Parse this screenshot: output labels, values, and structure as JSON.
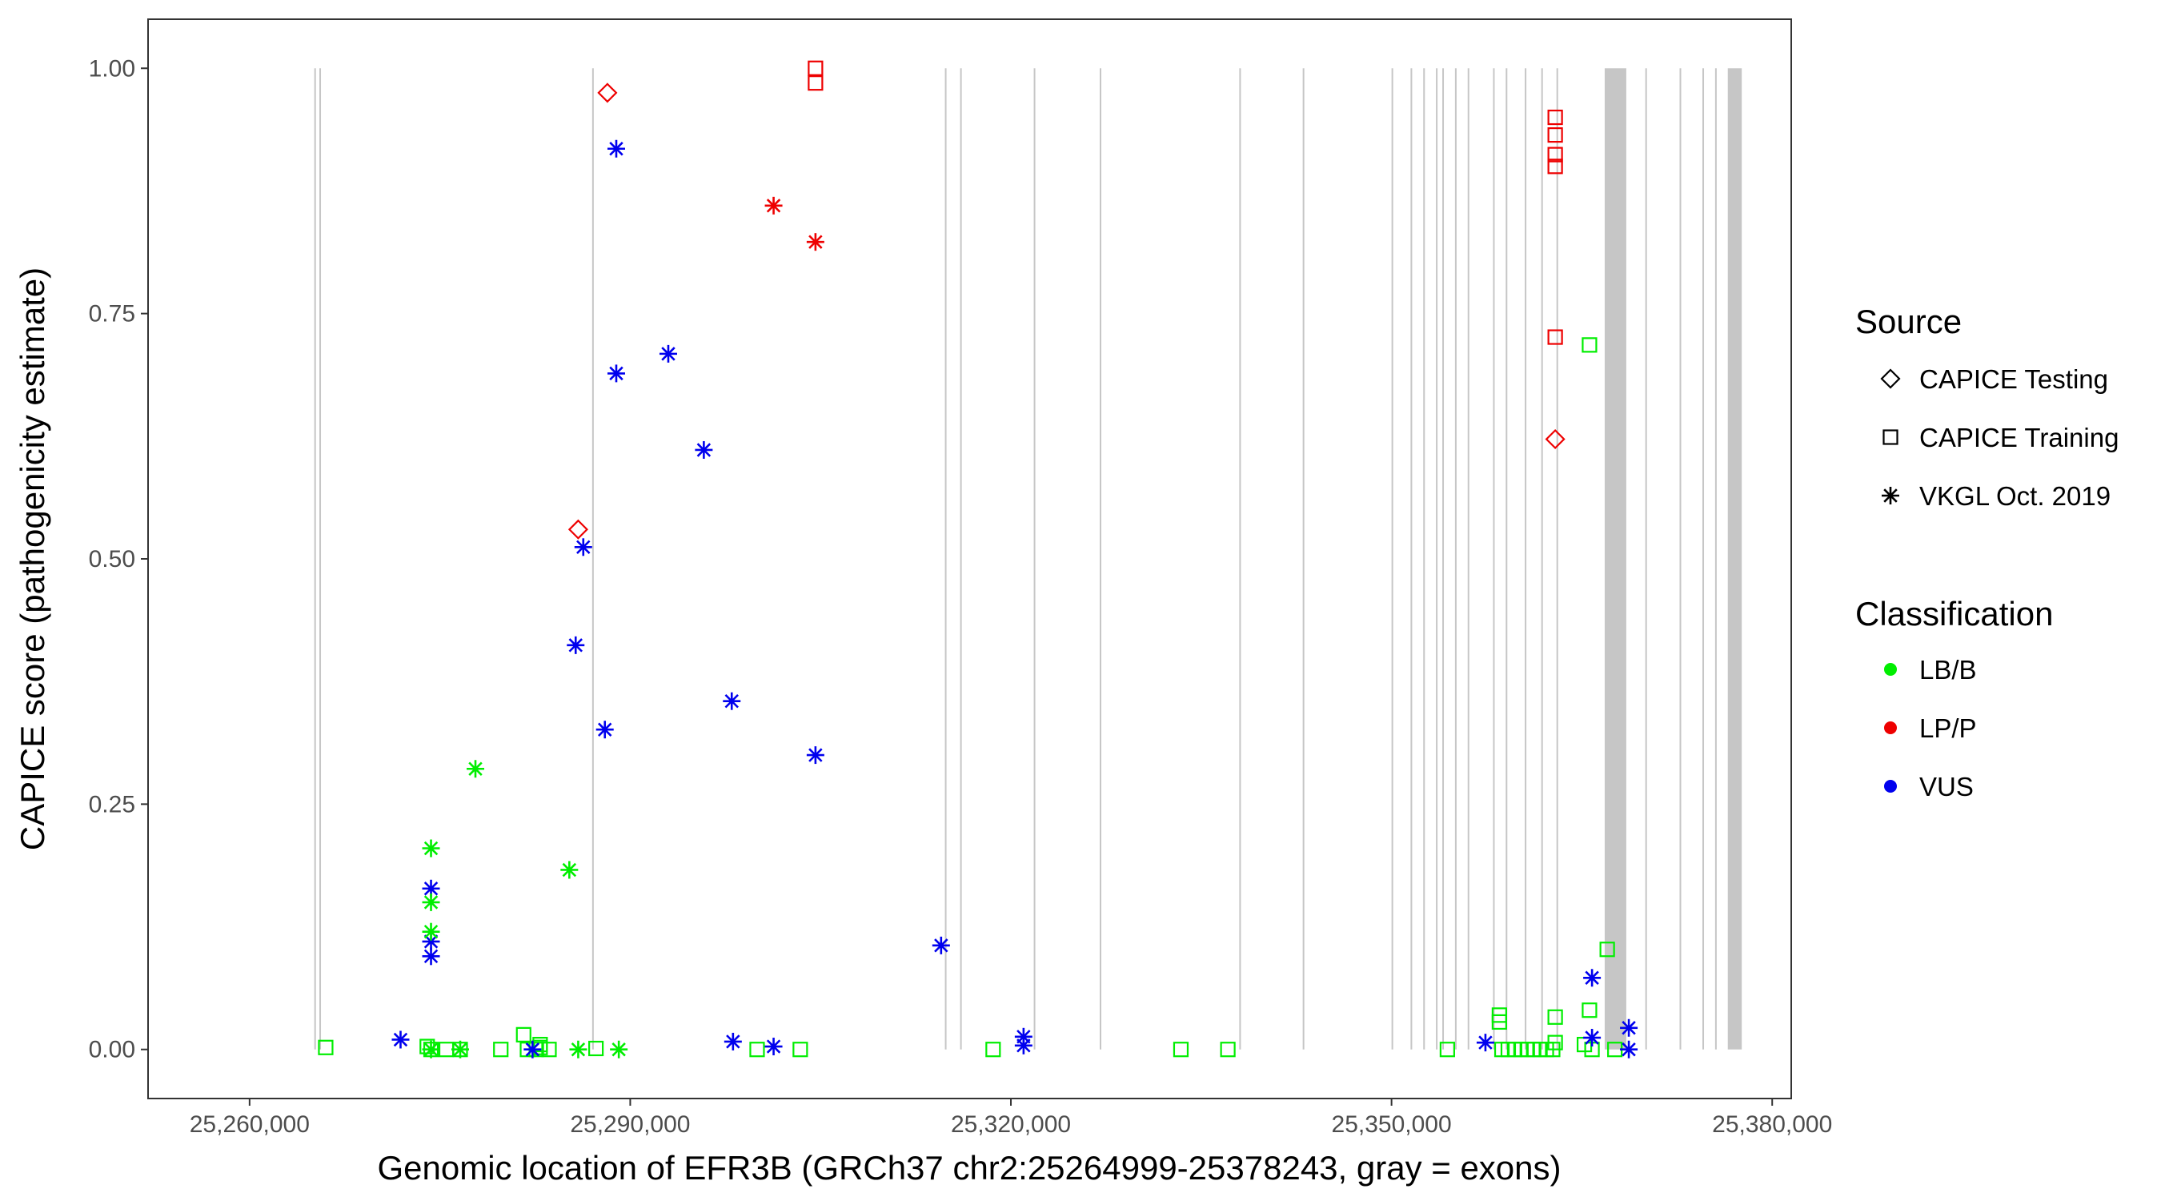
{
  "chart_data": {
    "type": "scatter",
    "title": "",
    "xlabel": "Genomic location of EFR3B (GRCh37 chr2:25264999-25378243, gray = exons)",
    "ylabel": "CAPICE score (pathogenicity estimate)",
    "xlim": [
      25252000,
      25381500
    ],
    "ylim": [
      -0.05,
      1.05
    ],
    "x_ticks": [
      25260000,
      25290000,
      25320000,
      25350000,
      25380000
    ],
    "x_tick_labels": [
      "25,260,000",
      "25,290,000",
      "25,320,000",
      "25,350,000",
      "25,380,000"
    ],
    "y_ticks": [
      0,
      0.25,
      0.5,
      0.75,
      1
    ],
    "y_tick_labels": [
      "0.00",
      "0.25",
      "0.50",
      "0.75",
      "1.00"
    ],
    "grid": false,
    "exons": [
      [
        25265100,
        25265200
      ],
      [
        25265500,
        25265600
      ],
      [
        25287000,
        25287100
      ],
      [
        25314800,
        25314900
      ],
      [
        25316000,
        25316100
      ],
      [
        25321800,
        25321900
      ],
      [
        25327000,
        25327100
      ],
      [
        25338000,
        25338100
      ],
      [
        25343000,
        25343100
      ],
      [
        25350000,
        25350100
      ],
      [
        25351500,
        25351600
      ],
      [
        25352500,
        25352600
      ],
      [
        25353500,
        25353600
      ],
      [
        25354000,
        25354100
      ],
      [
        25355000,
        25355100
      ],
      [
        25356000,
        25356100
      ],
      [
        25358000,
        25358100
      ],
      [
        25359000,
        25359100
      ],
      [
        25360500,
        25360600
      ],
      [
        25361800,
        25361900
      ],
      [
        25363000,
        25363100
      ],
      [
        25366800,
        25368500
      ],
      [
        25370000,
        25370100
      ],
      [
        25372700,
        25372800
      ],
      [
        25374500,
        25374600
      ],
      [
        25375500,
        25375600
      ],
      [
        25376500,
        25377600
      ]
    ],
    "classification_colors": {
      "LB/B": "#00ee00",
      "LP/P": "#ee0000",
      "VUS": "#0000ee"
    },
    "legend_position": "right",
    "legend": {
      "source_title": "Source",
      "source_items": [
        {
          "label": "CAPICE Testing",
          "shape": "diamond"
        },
        {
          "label": "CAPICE Training",
          "shape": "square"
        },
        {
          "label": "VKGL Oct. 2019",
          "shape": "asterisk"
        }
      ],
      "classification_title": "Classification",
      "classification_items": [
        {
          "label": "LB/B",
          "color": "#00ee00"
        },
        {
          "label": "LP/P",
          "color": "#ee0000"
        },
        {
          "label": "VUS",
          "color": "#0000ee"
        }
      ]
    },
    "series": [
      {
        "source": "CAPICE Testing",
        "shape": "diamond",
        "points": [
          {
            "x": 25288200,
            "y": 0.975,
            "class": "LP/P"
          },
          {
            "x": 25285900,
            "y": 0.53,
            "class": "LP/P"
          },
          {
            "x": 25362900,
            "y": 0.622,
            "class": "LP/P"
          }
        ]
      },
      {
        "source": "CAPICE Training",
        "shape": "square",
        "points": [
          {
            "x": 25304600,
            "y": 1.0,
            "class": "LP/P"
          },
          {
            "x": 25304600,
            "y": 0.985,
            "class": "LP/P"
          },
          {
            "x": 25362900,
            "y": 0.95,
            "class": "LP/P"
          },
          {
            "x": 25362900,
            "y": 0.932,
            "class": "LP/P"
          },
          {
            "x": 25362900,
            "y": 0.912,
            "class": "LP/P"
          },
          {
            "x": 25362900,
            "y": 0.9,
            "class": "LP/P"
          },
          {
            "x": 25362900,
            "y": 0.726,
            "class": "LP/P"
          },
          {
            "x": 25365600,
            "y": 0.718,
            "class": "LB/B"
          },
          {
            "x": 25367000,
            "y": 0.102,
            "class": "LB/B"
          },
          {
            "x": 25365600,
            "y": 0.04,
            "class": "LB/B"
          },
          {
            "x": 25358500,
            "y": 0.035,
            "class": "LB/B"
          },
          {
            "x": 25358500,
            "y": 0.028,
            "class": "LB/B"
          },
          {
            "x": 25362900,
            "y": 0.033,
            "class": "LB/B"
          },
          {
            "x": 25362900,
            "y": 0.007,
            "class": "LB/B"
          },
          {
            "x": 25365200,
            "y": 0.005,
            "class": "LB/B"
          },
          {
            "x": 25281600,
            "y": 0.015,
            "class": "LB/B"
          },
          {
            "x": 25282900,
            "y": 0.005,
            "class": "LB/B"
          },
          {
            "x": 25282900,
            "y": 0.002,
            "class": "LB/B"
          },
          {
            "x": 25266000,
            "y": 0.002,
            "class": "LB/B"
          },
          {
            "x": 25274000,
            "y": 0.003,
            "class": "LB/B"
          },
          {
            "x": 25274300,
            "y": 0.0,
            "class": "LB/B"
          },
          {
            "x": 25275500,
            "y": 0.0,
            "class": "LB/B"
          },
          {
            "x": 25276600,
            "y": 0.0,
            "class": "LB/B"
          },
          {
            "x": 25279800,
            "y": 0.0,
            "class": "LB/B"
          },
          {
            "x": 25281900,
            "y": 0.0,
            "class": "LB/B"
          },
          {
            "x": 25282600,
            "y": 0.0,
            "class": "LB/B"
          },
          {
            "x": 25283600,
            "y": 0.0,
            "class": "LB/B"
          },
          {
            "x": 25287300,
            "y": 0.001,
            "class": "LB/B"
          },
          {
            "x": 25300000,
            "y": 0.0,
            "class": "LB/B"
          },
          {
            "x": 25303400,
            "y": 0.0,
            "class": "LB/B"
          },
          {
            "x": 25318600,
            "y": 0.0,
            "class": "LB/B"
          },
          {
            "x": 25333400,
            "y": 0.0,
            "class": "LB/B"
          },
          {
            "x": 25337100,
            "y": 0.0,
            "class": "LB/B"
          },
          {
            "x": 25354400,
            "y": 0.0,
            "class": "LB/B"
          },
          {
            "x": 25358700,
            "y": 0.0,
            "class": "LB/B"
          },
          {
            "x": 25359200,
            "y": 0.0,
            "class": "LB/B"
          },
          {
            "x": 25359700,
            "y": 0.0,
            "class": "LB/B"
          },
          {
            "x": 25360200,
            "y": 0.0,
            "class": "LB/B"
          },
          {
            "x": 25360700,
            "y": 0.0,
            "class": "LB/B"
          },
          {
            "x": 25361200,
            "y": 0.0,
            "class": "LB/B"
          },
          {
            "x": 25361700,
            "y": 0.0,
            "class": "LB/B"
          },
          {
            "x": 25362200,
            "y": 0.0,
            "class": "LB/B"
          },
          {
            "x": 25362700,
            "y": 0.0,
            "class": "LB/B"
          },
          {
            "x": 25365800,
            "y": 0.0,
            "class": "LB/B"
          },
          {
            "x": 25367600,
            "y": 0.0,
            "class": "LB/B"
          }
        ]
      },
      {
        "source": "VKGL Oct. 2019",
        "shape": "asterisk",
        "points": [
          {
            "x": 25301300,
            "y": 0.86,
            "class": "LP/P"
          },
          {
            "x": 25304600,
            "y": 0.823,
            "class": "LP/P"
          },
          {
            "x": 25288900,
            "y": 0.918,
            "class": "VUS"
          },
          {
            "x": 25288900,
            "y": 0.689,
            "class": "VUS"
          },
          {
            "x": 25293000,
            "y": 0.709,
            "class": "VUS"
          },
          {
            "x": 25295800,
            "y": 0.611,
            "class": "VUS"
          },
          {
            "x": 25286300,
            "y": 0.512,
            "class": "VUS"
          },
          {
            "x": 25285700,
            "y": 0.412,
            "class": "VUS"
          },
          {
            "x": 25298000,
            "y": 0.355,
            "class": "VUS"
          },
          {
            "x": 25288000,
            "y": 0.326,
            "class": "VUS"
          },
          {
            "x": 25304600,
            "y": 0.3,
            "class": "VUS"
          },
          {
            "x": 25274300,
            "y": 0.164,
            "class": "VUS"
          },
          {
            "x": 25274300,
            "y": 0.11,
            "class": "VUS"
          },
          {
            "x": 25274300,
            "y": 0.095,
            "class": "VUS"
          },
          {
            "x": 25314500,
            "y": 0.106,
            "class": "VUS"
          },
          {
            "x": 25271900,
            "y": 0.01,
            "class": "VUS"
          },
          {
            "x": 25282300,
            "y": 0.0,
            "class": "VUS"
          },
          {
            "x": 25298100,
            "y": 0.008,
            "class": "VUS"
          },
          {
            "x": 25301300,
            "y": 0.003,
            "class": "VUS"
          },
          {
            "x": 25321000,
            "y": 0.013,
            "class": "VUS"
          },
          {
            "x": 25321000,
            "y": 0.004,
            "class": "VUS"
          },
          {
            "x": 25357400,
            "y": 0.007,
            "class": "VUS"
          },
          {
            "x": 25365800,
            "y": 0.073,
            "class": "VUS"
          },
          {
            "x": 25365800,
            "y": 0.012,
            "class": "VUS"
          },
          {
            "x": 25368700,
            "y": 0.022,
            "class": "VUS"
          },
          {
            "x": 25368700,
            "y": 0.0,
            "class": "VUS"
          },
          {
            "x": 25277800,
            "y": 0.286,
            "class": "LB/B"
          },
          {
            "x": 25274300,
            "y": 0.205,
            "class": "LB/B"
          },
          {
            "x": 25285200,
            "y": 0.183,
            "class": "LB/B"
          },
          {
            "x": 25274300,
            "y": 0.15,
            "class": "LB/B"
          },
          {
            "x": 25274300,
            "y": 0.12,
            "class": "LB/B"
          },
          {
            "x": 25274300,
            "y": 0.0,
            "class": "LB/B"
          },
          {
            "x": 25276600,
            "y": 0.0,
            "class": "LB/B"
          },
          {
            "x": 25285900,
            "y": 0.0,
            "class": "LB/B"
          },
          {
            "x": 25289100,
            "y": 0.0,
            "class": "LB/B"
          }
        ]
      }
    ]
  }
}
